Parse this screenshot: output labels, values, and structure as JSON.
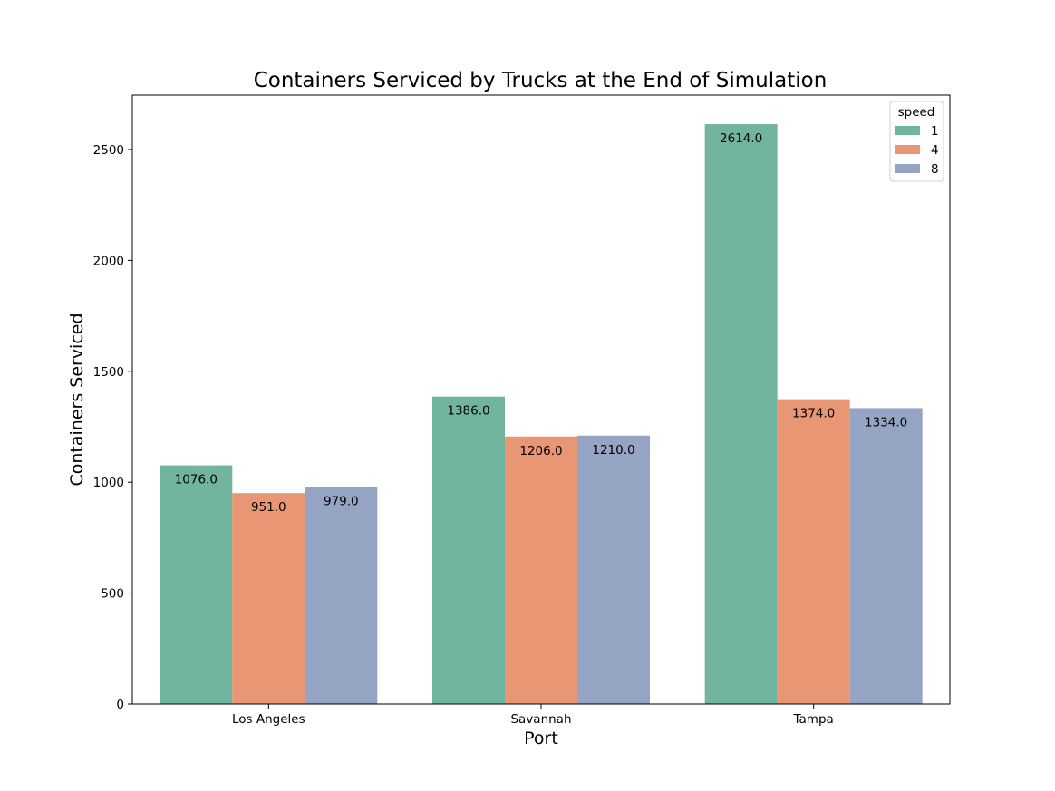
{
  "chart_data": {
    "type": "bar",
    "title": "Containers Serviced by Trucks at the End of Simulation",
    "xlabel": "Port",
    "ylabel": "Containers Serviced",
    "categories": [
      "Los Angeles",
      "Savannah",
      "Tampa"
    ],
    "series": [
      {
        "name": "1",
        "color": "#72b59f",
        "values": [
          1076.0,
          1386.0,
          2614.0
        ],
        "labels": [
          "1076.0",
          "1386.0",
          "2614.0"
        ]
      },
      {
        "name": "4",
        "color": "#e89673",
        "values": [
          951.0,
          1206.0,
          1374.0
        ],
        "labels": [
          "951.0",
          "1206.0",
          "1374.0"
        ]
      },
      {
        "name": "8",
        "color": "#95a4c3",
        "values": [
          979.0,
          1210.0,
          1334.0
        ],
        "labels": [
          "979.0",
          "1210.0",
          "1334.0"
        ]
      }
    ],
    "ylim": [
      0,
      2745
    ],
    "yticks": [
      0,
      500,
      1000,
      1500,
      2000,
      2500
    ],
    "ytick_labels": [
      "0",
      "500",
      "1000",
      "1500",
      "2000",
      "2500"
    ],
    "legend": {
      "title": "speed",
      "placement": "upper-right"
    },
    "grid": false
  }
}
